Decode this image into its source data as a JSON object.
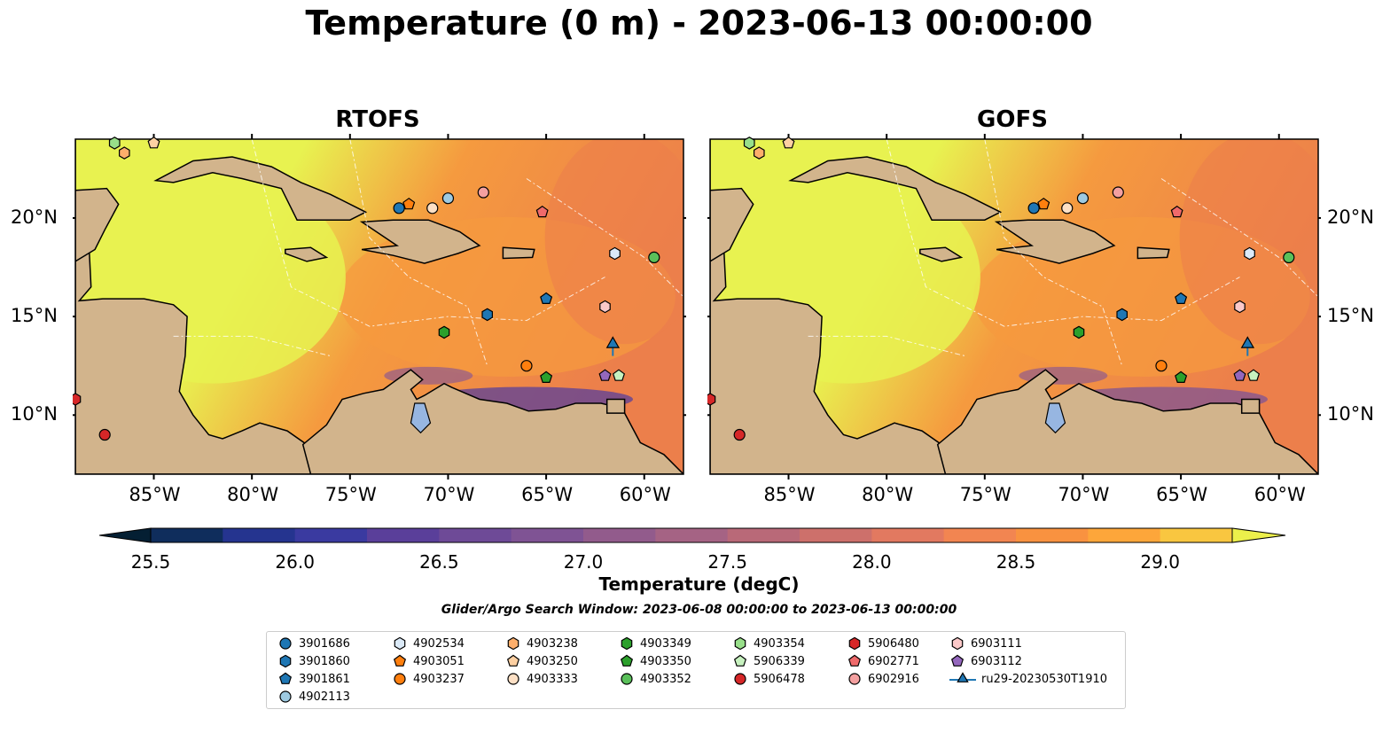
{
  "title": "Temperature (0 m) - 2023-06-13 00:00:00",
  "panels": [
    {
      "name": "RTOFS",
      "title": "RTOFS"
    },
    {
      "name": "GOFS",
      "title": "GOFS"
    }
  ],
  "axes": {
    "lon_ticks": [
      "85°W",
      "80°W",
      "75°W",
      "70°W",
      "65°W",
      "60°W"
    ],
    "lat_ticks": [
      "20°N",
      "15°N",
      "10°N"
    ],
    "lon_range": [
      -89,
      -58
    ],
    "lat_range": [
      7,
      24
    ]
  },
  "colorbar": {
    "label": "Temperature (degC)",
    "ticks": [
      "25.5",
      "26.0",
      "26.5",
      "27.0",
      "27.5",
      "28.0",
      "28.5",
      "29.0"
    ],
    "range": [
      25.5,
      29.25
    ],
    "colors": [
      "#041f33",
      "#0f2d5c",
      "#25348f",
      "#3a3aa0",
      "#5a3f9a",
      "#6e4a97",
      "#7f5394",
      "#925b8c",
      "#a56384",
      "#b96978",
      "#cd706b",
      "#e27960",
      "#f28551",
      "#f99240",
      "#fda63a",
      "#f9c640",
      "#ecef4b"
    ]
  },
  "search_window": "Glider/Argo Search Window: 2023-06-08 00:00:00 to 2023-06-13 00:00:00",
  "map_colors": {
    "land": "#d2b48c",
    "lake": "#97b6e1",
    "warm": "#f59a3f",
    "hot": "#ec7f4b",
    "cool": "#e8f250"
  },
  "legend": [
    {
      "id": "3901686",
      "marker": "circle",
      "color": "#1f77b4"
    },
    {
      "id": "3901860",
      "marker": "hexagon",
      "color": "#1f77b4"
    },
    {
      "id": "3901861",
      "marker": "pentagon",
      "color": "#1f77b4"
    },
    {
      "id": "4902113",
      "marker": "circle",
      "color": "#9ecae1"
    },
    {
      "id": "4902534",
      "marker": "hexagon",
      "color": "#dbeaf8"
    },
    {
      "id": "4903051",
      "marker": "pentagon",
      "color": "#ff7f0e"
    },
    {
      "id": "4903237",
      "marker": "circle",
      "color": "#ff7f0e"
    },
    {
      "id": "4903238",
      "marker": "hexagon",
      "color": "#fdae6b"
    },
    {
      "id": "4903250",
      "marker": "pentagon",
      "color": "#fdd0a2"
    },
    {
      "id": "4903333",
      "marker": "circle",
      "color": "#fde0c5"
    },
    {
      "id": "4903349",
      "marker": "hexagon",
      "color": "#2ca02c"
    },
    {
      "id": "4903350",
      "marker": "pentagon",
      "color": "#2ca02c"
    },
    {
      "id": "4903352",
      "marker": "circle",
      "color": "#5ac05a"
    },
    {
      "id": "4903354",
      "marker": "hexagon",
      "color": "#98df8a"
    },
    {
      "id": "5906339",
      "marker": "pentagon",
      "color": "#c7f1bf"
    },
    {
      "id": "5906478",
      "marker": "circle",
      "color": "#d62728"
    },
    {
      "id": "5906480",
      "marker": "hexagon",
      "color": "#d62728"
    },
    {
      "id": "6902771",
      "marker": "pentagon",
      "color": "#ef6a6b"
    },
    {
      "id": "6902916",
      "marker": "circle",
      "color": "#f4a0a0"
    },
    {
      "id": "6903111",
      "marker": "hexagon",
      "color": "#fbc9c9"
    },
    {
      "id": "6903112",
      "marker": "pentagon",
      "color": "#9467bd"
    },
    {
      "id": "ru29-20230530T1910",
      "marker": "triangle",
      "color": "#1f77b4"
    }
  ],
  "floats": [
    {
      "id": "3901686",
      "lon": -72.5,
      "lat": 20.5
    },
    {
      "id": "3901860",
      "lon": -68.0,
      "lat": 15.1
    },
    {
      "id": "3901861",
      "lon": -65.0,
      "lat": 15.9
    },
    {
      "id": "4902113",
      "lon": -70.0,
      "lat": 21.0
    },
    {
      "id": "4902534",
      "lon": -61.5,
      "lat": 18.2
    },
    {
      "id": "4903051",
      "lon": -72.0,
      "lat": 20.7
    },
    {
      "id": "4903237",
      "lon": -66.0,
      "lat": 12.5
    },
    {
      "id": "4903238",
      "lon": -86.5,
      "lat": 23.3
    },
    {
      "id": "4903250",
      "lon": -85.0,
      "lat": 23.8
    },
    {
      "id": "4903333",
      "lon": -70.8,
      "lat": 20.5
    },
    {
      "id": "4903349",
      "lon": -70.2,
      "lat": 14.2
    },
    {
      "id": "4903350",
      "lon": -65.0,
      "lat": 11.9
    },
    {
      "id": "4903352",
      "lon": -59.5,
      "lat": 18.0
    },
    {
      "id": "4903354",
      "lon": -87.0,
      "lat": 23.8
    },
    {
      "id": "5906339",
      "lon": -61.3,
      "lat": 12.0
    },
    {
      "id": "5906478",
      "lon": -87.5,
      "lat": 9.0
    },
    {
      "id": "5906480",
      "lon": -89.0,
      "lat": 10.8
    },
    {
      "id": "6902771",
      "lon": -65.2,
      "lat": 20.3
    },
    {
      "id": "6902916",
      "lon": -68.2,
      "lat": 21.3
    },
    {
      "id": "6903111",
      "lon": -62.0,
      "lat": 15.5
    },
    {
      "id": "6903112",
      "lon": -62.0,
      "lat": 12.0
    }
  ],
  "glider_track": {
    "id": "ru29-20230530T1910",
    "points": [
      [
        -61.6,
        13.0
      ],
      [
        -61.6,
        13.6
      ]
    ]
  }
}
